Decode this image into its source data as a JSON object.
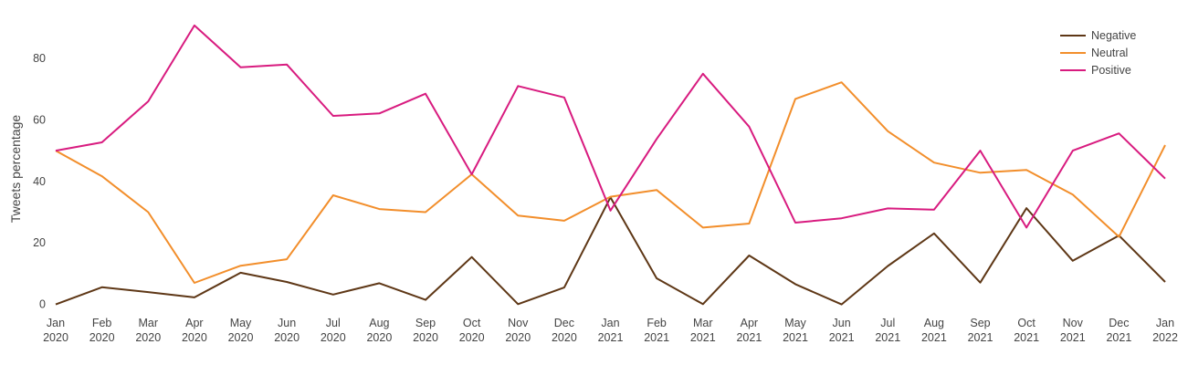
{
  "chart_data": {
    "type": "line",
    "title": "",
    "xlabel": "",
    "ylabel": "Tweets percentage",
    "ylim": [
      -1,
      96
    ],
    "yticks": [
      0,
      20,
      40,
      60,
      80
    ],
    "grid": false,
    "legend_position": "top-right",
    "x": [
      [
        "Jan",
        "2020"
      ],
      [
        "Feb",
        "2020"
      ],
      [
        "Mar",
        "2020"
      ],
      [
        "Apr",
        "2020"
      ],
      [
        "May",
        "2020"
      ],
      [
        "Jun",
        "2020"
      ],
      [
        "Jul",
        "2020"
      ],
      [
        "Aug",
        "2020"
      ],
      [
        "Sep",
        "2020"
      ],
      [
        "Oct",
        "2020"
      ],
      [
        "Nov",
        "2020"
      ],
      [
        "Dec",
        "2020"
      ],
      [
        "Jan",
        "2021"
      ],
      [
        "Feb",
        "2021"
      ],
      [
        "Mar",
        "2021"
      ],
      [
        "Apr",
        "2021"
      ],
      [
        "May",
        "2021"
      ],
      [
        "Jun",
        "2021"
      ],
      [
        "Jul",
        "2021"
      ],
      [
        "Aug",
        "2021"
      ],
      [
        "Sep",
        "2021"
      ],
      [
        "Oct",
        "2021"
      ],
      [
        "Nov",
        "2021"
      ],
      [
        "Dec",
        "2021"
      ],
      [
        "Jan",
        "2022"
      ]
    ],
    "series": [
      {
        "name": "Negative",
        "color": "#5e3716",
        "values": [
          0,
          5.6,
          4.0,
          2.3,
          10.3,
          7.3,
          3.2,
          6.9,
          1.5,
          15.4,
          0.1,
          5.5,
          34.8,
          8.5,
          0.1,
          15.9,
          6.6,
          0,
          12.5,
          23.1,
          7.1,
          31.3,
          14.2,
          22.4,
          7.3
        ]
      },
      {
        "name": "Neutral",
        "color": "#f28e2b",
        "values": [
          50,
          41.7,
          30.0,
          7.0,
          12.6,
          14.7,
          35.5,
          31.0,
          30.0,
          42.3,
          28.9,
          27.2,
          35.0,
          37.2,
          25.0,
          26.3,
          66.8,
          72.2,
          56.3,
          46.1,
          42.8,
          43.7,
          35.7,
          22.0,
          51.8
        ]
      },
      {
        "name": "Positive",
        "color": "#d81b7f",
        "values": [
          50,
          52.7,
          66.0,
          90.7,
          77.1,
          78.0,
          61.3,
          62.1,
          68.5,
          42.3,
          71.0,
          67.3,
          30.5,
          53.8,
          75.0,
          57.8,
          26.6,
          28.0,
          31.2,
          30.8,
          50.0,
          25.0,
          50.0,
          55.6,
          40.9
        ]
      }
    ]
  }
}
